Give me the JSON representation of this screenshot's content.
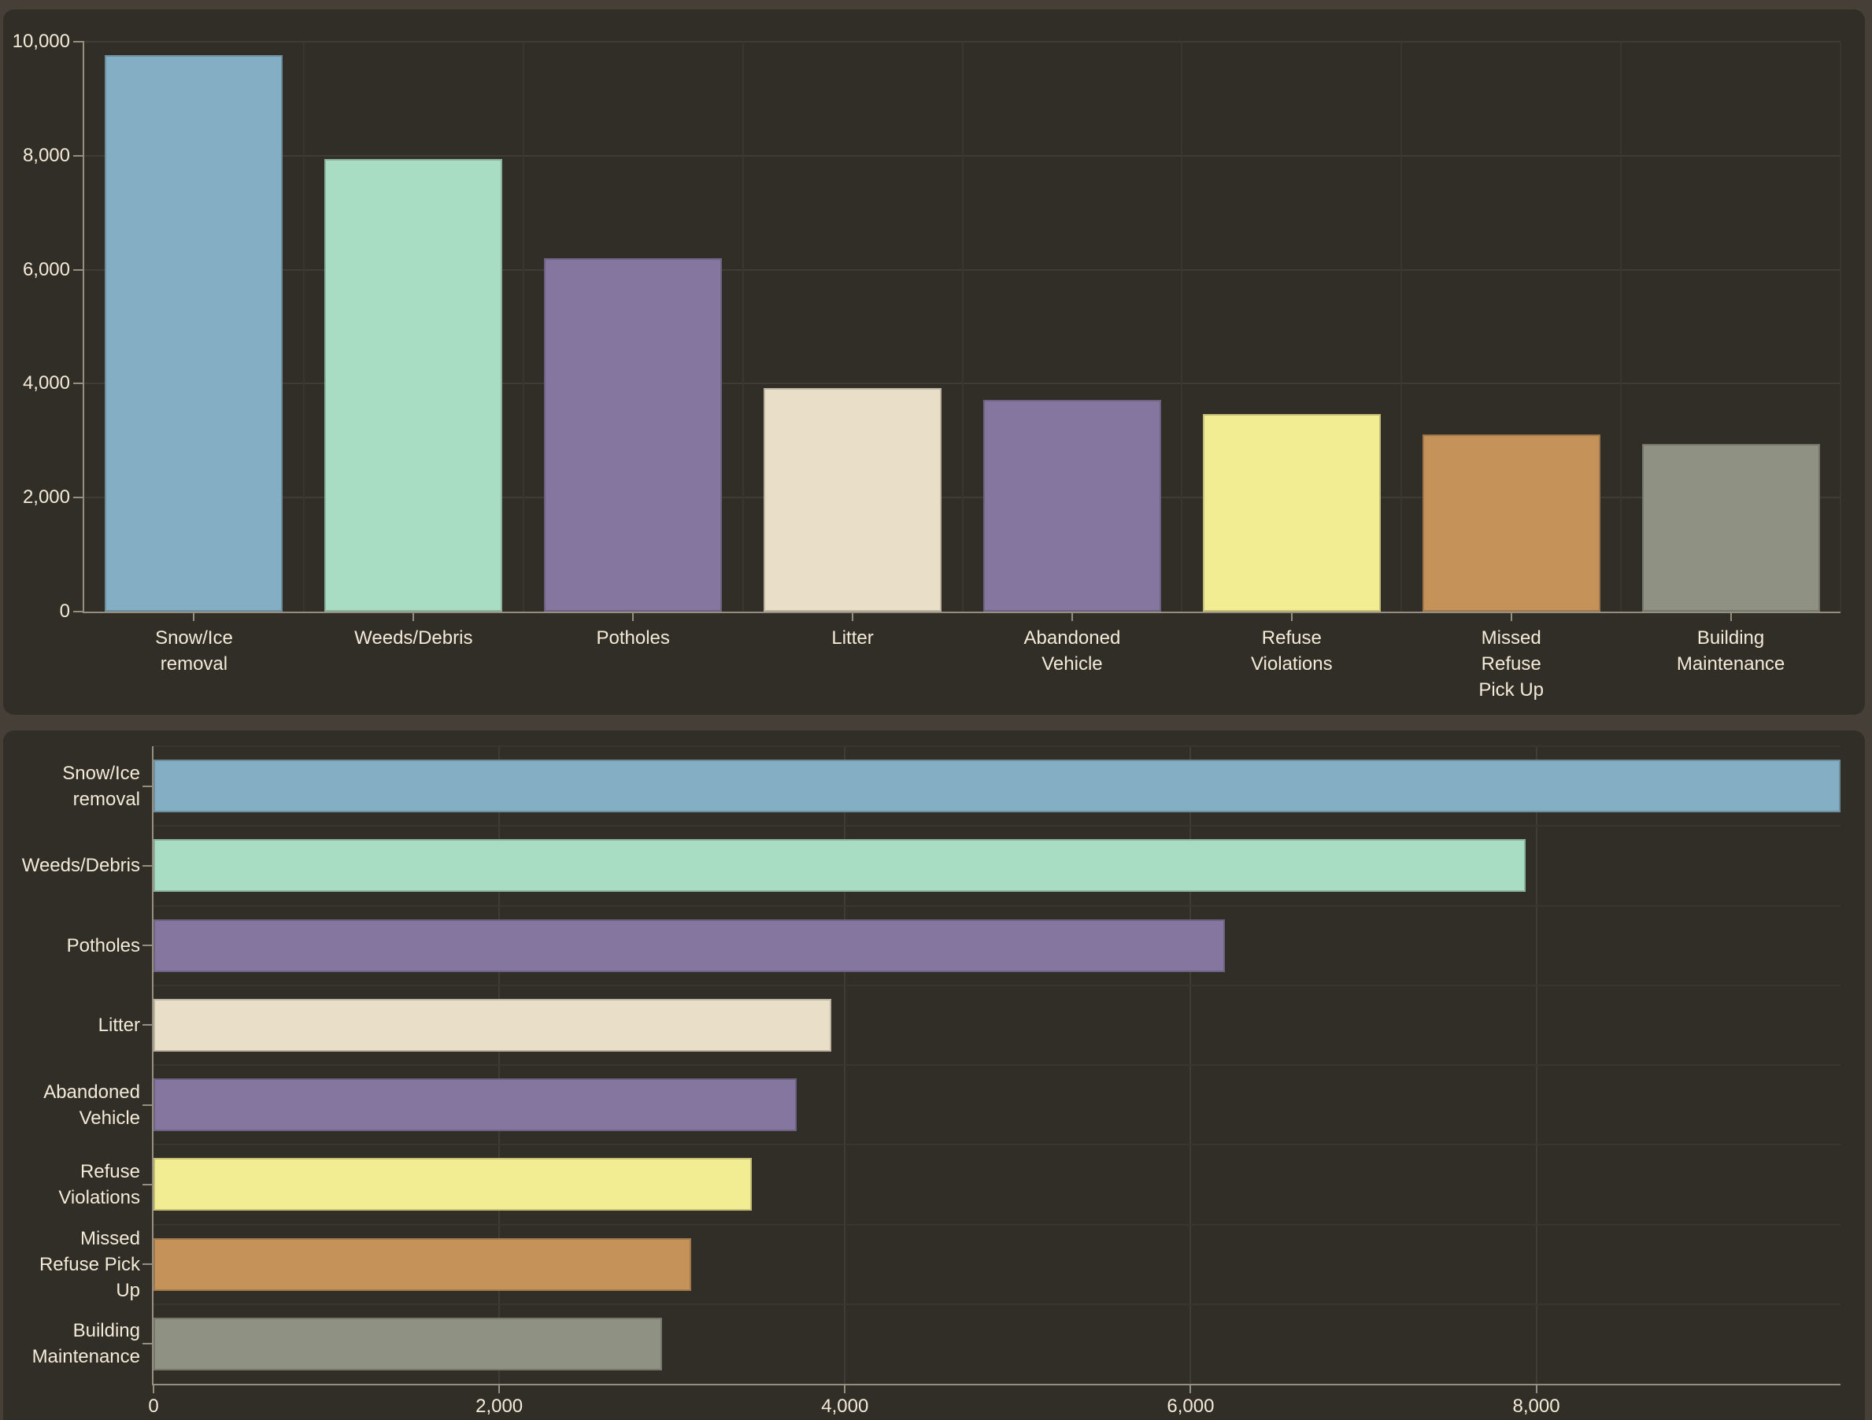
{
  "page": {
    "background_color": "#453F37",
    "panel_color": "#312D27",
    "text_color": "#F3EAD8",
    "axis_color": "#968F81",
    "value_gridline_color": "#403B33",
    "band_gridline_color": "#393530"
  },
  "categories": [
    "Snow/Ice removal",
    "Weeds/Debris",
    "Potholes",
    "Litter",
    "Abandoned Vehicle",
    "Refuse Violations",
    "Missed Refuse Pick Up",
    "Building Maintenance"
  ],
  "category_slugs": [
    "snow-ice-removal",
    "weeds-debris",
    "potholes",
    "litter",
    "abandoned-vehicle",
    "refuse-violations",
    "missed-refuse-pick-up",
    "building-maintenance"
  ],
  "values": [
    9760,
    7940,
    6200,
    3920,
    3720,
    3460,
    3110,
    2940
  ],
  "bar_colors": [
    "#84AEC3",
    "#A8DCC3",
    "#8576A0",
    "#E9DFC9",
    "#8576A0",
    "#F2EC92",
    "#C5925A",
    "#8F9183"
  ],
  "chart_data": [
    {
      "type": "bar",
      "orientation": "vertical",
      "title": "",
      "categories": [
        "Snow/Ice removal",
        "Weeds/Debris",
        "Potholes",
        "Litter",
        "Abandoned Vehicle",
        "Refuse Violations",
        "Missed Refuse Pick Up",
        "Building Maintenance"
      ],
      "category_label_lines": [
        [
          "Snow/Ice",
          "removal"
        ],
        [
          "Weeds/Debris"
        ],
        [
          "Potholes"
        ],
        [
          "Litter"
        ],
        [
          "Abandoned",
          "Vehicle"
        ],
        [
          "Refuse",
          "Violations"
        ],
        [
          "Missed",
          "Refuse",
          "Pick Up"
        ],
        [
          "Building",
          "Maintenance"
        ]
      ],
      "values": [
        9760,
        7940,
        6200,
        3920,
        3720,
        3460,
        3110,
        2940
      ],
      "colors": [
        "#84AEC3",
        "#A8DCC3",
        "#8576A0",
        "#E9DFC9",
        "#8576A0",
        "#F2EC92",
        "#C5925A",
        "#8F9183"
      ],
      "xlabel": "",
      "ylabel": "",
      "ylim": [
        0,
        10000
      ],
      "ytick_values": [
        0,
        2000,
        4000,
        6000,
        8000,
        10000
      ],
      "ytick_labels": [
        "0",
        "2,000",
        "4,000",
        "6,000",
        "8,000",
        "10,000"
      ],
      "grid": true,
      "legend": false
    },
    {
      "type": "bar",
      "orientation": "horizontal",
      "title": "",
      "categories": [
        "Snow/Ice removal",
        "Weeds/Debris",
        "Potholes",
        "Litter",
        "Abandoned Vehicle",
        "Refuse Violations",
        "Missed Refuse Pick Up",
        "Building Maintenance"
      ],
      "category_label_lines": [
        [
          "Snow/Ice",
          "removal"
        ],
        [
          "Weeds/Debris"
        ],
        [
          "Potholes"
        ],
        [
          "Litter"
        ],
        [
          "Abandoned",
          "Vehicle"
        ],
        [
          "Refuse",
          "Violations"
        ],
        [
          "Missed",
          "Refuse Pick",
          "Up"
        ],
        [
          "Building",
          "Maintenance"
        ]
      ],
      "values": [
        9760,
        7940,
        6200,
        3920,
        3720,
        3460,
        3110,
        2940
      ],
      "colors": [
        "#84AEC3",
        "#A8DCC3",
        "#8576A0",
        "#E9DFC9",
        "#8576A0",
        "#F2EC92",
        "#C5925A",
        "#8F9183"
      ],
      "xlabel": "",
      "ylabel": "",
      "xlim": [
        0,
        9760
      ],
      "xtick_values": [
        0,
        2000,
        4000,
        6000,
        8000
      ],
      "xtick_labels": [
        "0",
        "2,000",
        "4,000",
        "6,000",
        "8,000"
      ],
      "grid": true,
      "legend": false
    }
  ]
}
